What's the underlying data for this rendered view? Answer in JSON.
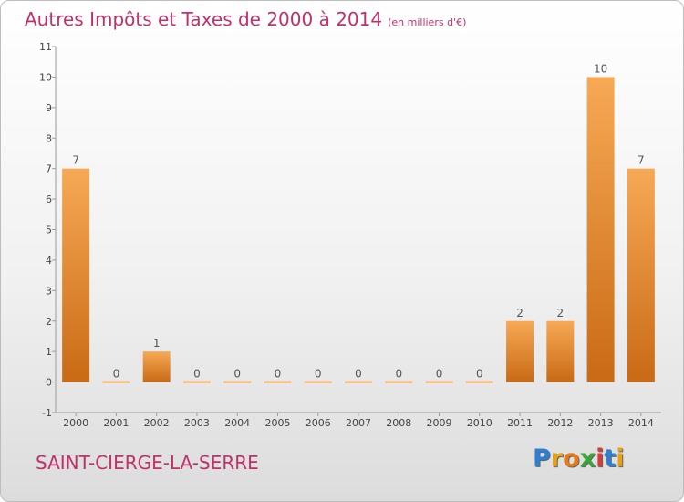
{
  "chart_data": {
    "type": "bar",
    "title": "Autres Impôts et Taxes de 2000 à 2014",
    "unit_label": "(en milliers d'€)",
    "categories": [
      "2000",
      "2001",
      "2002",
      "2003",
      "2004",
      "2005",
      "2006",
      "2007",
      "2008",
      "2009",
      "2010",
      "2011",
      "2012",
      "2013",
      "2014"
    ],
    "values": [
      7,
      0,
      1,
      0,
      0,
      0,
      0,
      0,
      0,
      0,
      0,
      2,
      2,
      10,
      7
    ],
    "ylim": [
      -1,
      11
    ],
    "yticks": [
      -1,
      0,
      1,
      2,
      3,
      4,
      5,
      6,
      7,
      8,
      9,
      10,
      11
    ],
    "grid": false,
    "bar_color_top": "#f7a955",
    "bar_color_bottom": "#c96a15"
  },
  "footer": {
    "commune": "SAINT-CIERGE-LA-SERRE",
    "brand_letters": [
      {
        "ch": "P",
        "color": "#2c7fd1"
      },
      {
        "ch": "r",
        "color": "#e3a21a"
      },
      {
        "ch": "o",
        "color": "#e37b1a"
      },
      {
        "ch": "x",
        "color": "#3aa33a"
      },
      {
        "ch": "i",
        "color": "#d63b3b"
      },
      {
        "ch": "t",
        "color": "#2c7fd1"
      },
      {
        "ch": "i",
        "color": "#e3a21a"
      }
    ]
  }
}
